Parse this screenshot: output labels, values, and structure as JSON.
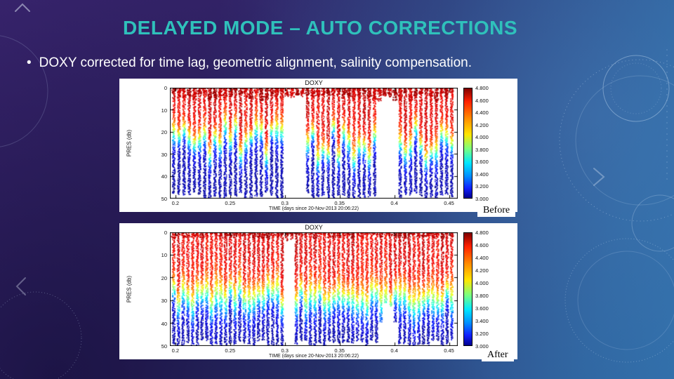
{
  "slide": {
    "title": "DELAYED MODE – AUTO CORRECTIONS",
    "bullet_marker": "•",
    "bullet": "DOXY corrected for time lag, geometric alignment, salinity compensation."
  },
  "colors": {
    "title_accent": "#2fc1bb",
    "body_text": "#ffffff",
    "background_left": "#3a2570",
    "background_right": "#2d639e",
    "chart_background": "#ffffff"
  },
  "decorations": [
    "compass-circle-motifs",
    "chevron-arrows",
    "dotted-ruler-line"
  ],
  "chart_data": [
    {
      "id": "before",
      "type": "scatter",
      "title": "DOXY",
      "caption": "Before",
      "xlabel": "TIME (days since 20-Nov-2013 20:06:22)",
      "ylabel": "PRES (db)",
      "xlim": [
        0.195,
        0.458
      ],
      "ylim": [
        0,
        50
      ],
      "y_axis_reversed": true,
      "grid": false,
      "legend": "colorbar-right",
      "xticks": [
        "0.2",
        "0.25",
        "0.3",
        "0.35",
        "0.4",
        "0.45"
      ],
      "yticks": [
        "0",
        "10",
        "20",
        "30",
        "40",
        "50"
      ],
      "colorbar": {
        "vmin": 3.0,
        "vmax": 4.8,
        "ticks": [
          "4.800",
          "4.600",
          "4.400",
          "4.200",
          "4.000",
          "3.800",
          "3.600",
          "3.400",
          "3.200",
          "3.000"
        ]
      },
      "series_description": "Dense vertical DOXY profiles every ~0.005 days from t=0.2 to 0.45; values ~4.6-4.8 (red) near 0 db dropping to ~3.0-3.2 (blue) by 50 db; ragged transition between 17-33 db; data gaps with surface-only red stubs near t=0.30-0.32 and t=0.39-0.40",
      "profiles": {
        "n": 55,
        "x_start": 0.198,
        "x_end": 0.452,
        "surface_value": 4.62,
        "deep_value": 3.08,
        "thermocline_depth": [
          17,
          33
        ],
        "thermocline_width": 3.0,
        "surface_blob_depth": 6,
        "gaps": [
          [
            0.298,
            0.316,
            3
          ],
          [
            0.386,
            0.401,
            3
          ]
        ],
        "seed": 9
      }
    },
    {
      "id": "after",
      "type": "scatter",
      "title": "DOXY",
      "caption": "After",
      "xlabel": "TIME (days since 20-Nov-2013 20:06:22)",
      "ylabel": "PRES (db)",
      "xlim": [
        0.195,
        0.458
      ],
      "ylim": [
        0,
        50
      ],
      "y_axis_reversed": true,
      "grid": false,
      "legend": "colorbar-right",
      "xticks": [
        "0.2",
        "0.25",
        "0.3",
        "0.35",
        "0.4",
        "0.45"
      ],
      "yticks": [
        "0",
        "10",
        "20",
        "30",
        "40",
        "50"
      ],
      "colorbar": {
        "vmin": 3.0,
        "vmax": 4.8,
        "ticks": [
          "4.800",
          "4.600",
          "4.400",
          "4.200",
          "4.000",
          "3.800",
          "3.600",
          "3.400",
          "3.200",
          "3.000"
        ]
      },
      "series_description": "Same profiles after auto corrections: smoother, more regular stripes; surface ~4.6-4.7 red, smooth yellow/green transition near 24-33 db, blue to 50 db; narrow gap near t=0.30 and shallower coverage (~34 db) near t=0.39-0.40",
      "profiles": {
        "n": 60,
        "x_start": 0.198,
        "x_end": 0.452,
        "surface_value": 4.62,
        "deep_value": 3.07,
        "thermocline_depth": [
          24,
          33
        ],
        "thermocline_width": 4.2,
        "surface_blob_depth": 2.5,
        "gaps": [
          [
            0.3,
            0.308,
            3
          ],
          [
            0.386,
            0.403,
            34
          ]
        ],
        "seed": 23
      }
    }
  ]
}
